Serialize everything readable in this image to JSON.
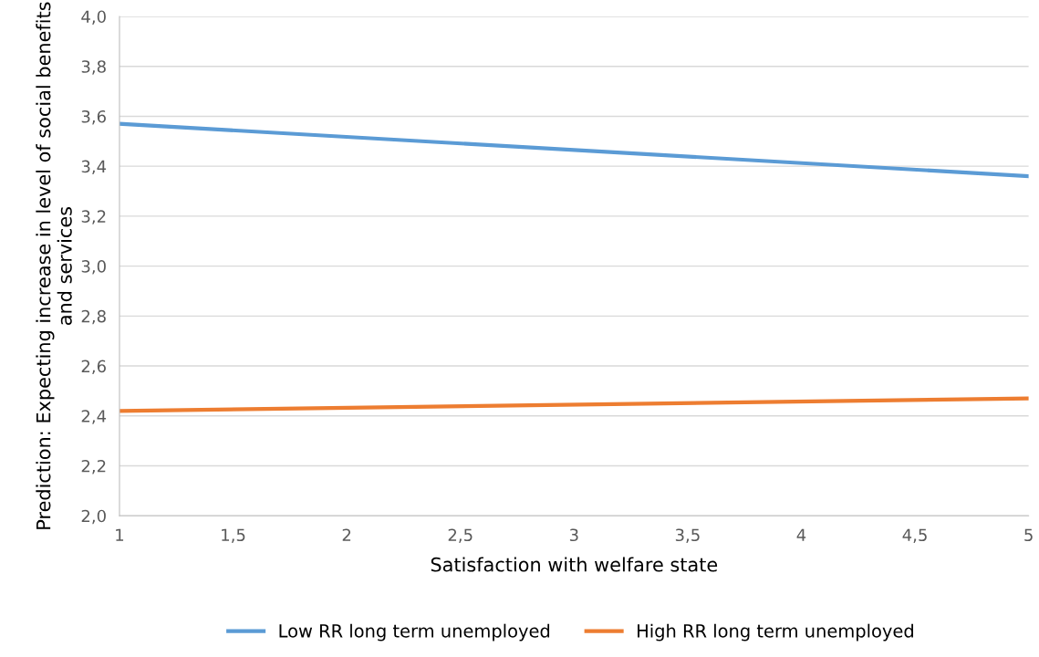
{
  "chart_data": {
    "type": "line",
    "xlabel": "Satisfaction with welfare state",
    "ylabel": "Prediction: Expecting increase in level of social benefits and services",
    "x": [
      1,
      5
    ],
    "series": [
      {
        "name": "Low RR long term unemployed",
        "color": "#5b9bd5",
        "values": [
          3.57,
          3.36
        ]
      },
      {
        "name": "High RR long term unemployed",
        "color": "#ed7d31",
        "values": [
          2.42,
          2.47
        ]
      }
    ],
    "xlim": [
      1,
      5
    ],
    "ylim": [
      2.0,
      4.0
    ],
    "xticks": [
      1,
      {
        "value": 1.5,
        "label": "1,5"
      },
      2,
      {
        "value": 2.5,
        "label": "2,5"
      },
      3,
      {
        "value": 3.5,
        "label": "3,5"
      },
      4,
      {
        "value": 4.5,
        "label": "4,5"
      },
      5
    ],
    "yticks": [
      {
        "value": 2.0,
        "label": "2,0"
      },
      {
        "value": 2.2,
        "label": "2,2"
      },
      {
        "value": 2.4,
        "label": "2,4"
      },
      {
        "value": 2.6,
        "label": "2,6"
      },
      {
        "value": 2.8,
        "label": "2,8"
      },
      {
        "value": 3.0,
        "label": "3,0"
      },
      {
        "value": 3.2,
        "label": "3,2"
      },
      {
        "value": 3.4,
        "label": "3,4"
      },
      {
        "value": 3.6,
        "label": "3,6"
      },
      {
        "value": 3.8,
        "label": "3,8"
      },
      {
        "value": 4.0,
        "label": "4,0"
      }
    ],
    "grid": "y",
    "legend": "bottom",
    "marker": "none",
    "line_style": "solid"
  }
}
